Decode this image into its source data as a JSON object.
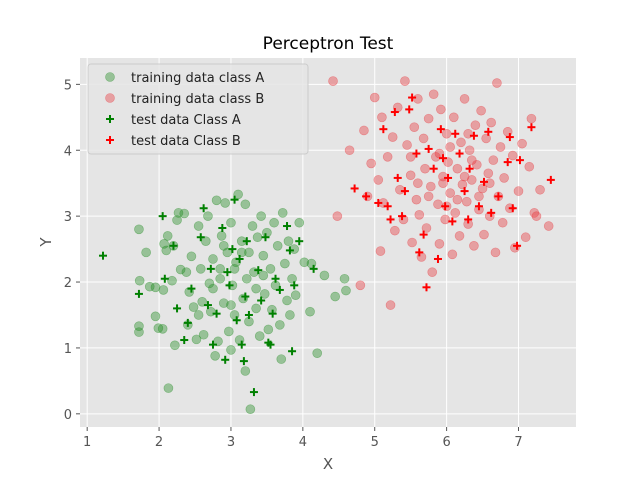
{
  "chart_data": {
    "type": "scatter",
    "title": "Perceptron Test",
    "xlabel": "X",
    "ylabel": "Y",
    "xlim": [
      0.9,
      7.8
    ],
    "ylim": [
      -0.2,
      5.4
    ],
    "xticks": [
      1,
      2,
      3,
      4,
      5,
      6,
      7
    ],
    "yticks": [
      0,
      1,
      2,
      3,
      4,
      5
    ],
    "grid": true,
    "legend_position": "top-left",
    "series": [
      {
        "name": "training data class A",
        "marker": "circle",
        "color": "#228b22",
        "points": [
          [
            1.72,
            2.8
          ],
          [
            1.72,
            1.33
          ],
          [
            1.72,
            1.24
          ],
          [
            1.73,
            2.02
          ],
          [
            1.82,
            2.45
          ],
          [
            1.87,
            1.93
          ],
          [
            1.95,
            1.92
          ],
          [
            1.95,
            1.48
          ],
          [
            1.99,
            1.3
          ],
          [
            2.05,
            1.29
          ],
          [
            2.06,
            1.88
          ],
          [
            2.07,
            2.58
          ],
          [
            2.1,
            2.48
          ],
          [
            2.12,
            2.7
          ],
          [
            2.13,
            0.39
          ],
          [
            2.2,
            2.55
          ],
          [
            2.22,
            1.04
          ],
          [
            2.25,
            2.94
          ],
          [
            2.27,
            3.05
          ],
          [
            2.3,
            2.19
          ],
          [
            2.35,
            3.04
          ],
          [
            2.38,
            2.15
          ],
          [
            2.42,
            1.85
          ],
          [
            2.45,
            2.39
          ],
          [
            2.48,
            1.62
          ],
          [
            2.52,
            1.13
          ],
          [
            2.55,
            2.85
          ],
          [
            2.58,
            2.2
          ],
          [
            2.62,
            1.2
          ],
          [
            2.65,
            2.62
          ],
          [
            2.68,
            3.0
          ],
          [
            2.7,
            1.98
          ],
          [
            2.72,
            1.55
          ],
          [
            2.75,
            2.35
          ],
          [
            2.78,
            0.88
          ],
          [
            2.8,
            3.24
          ],
          [
            2.82,
            1.1
          ],
          [
            2.85,
            2.05
          ],
          [
            2.87,
            2.7
          ],
          [
            2.9,
            1.68
          ],
          [
            2.92,
            3.2
          ],
          [
            2.95,
            2.45
          ],
          [
            2.97,
            1.25
          ],
          [
            3.0,
            0.97
          ],
          [
            3.0,
            2.9
          ],
          [
            3.02,
            1.95
          ],
          [
            3.05,
            1.5
          ],
          [
            3.07,
            2.3
          ],
          [
            3.1,
            3.33
          ],
          [
            3.12,
            1.12
          ],
          [
            3.15,
            2.62
          ],
          [
            3.17,
            1.75
          ],
          [
            3.2,
            0.65
          ],
          [
            3.2,
            3.18
          ],
          [
            3.22,
            2.05
          ],
          [
            3.25,
            1.4
          ],
          [
            3.27,
            0.07
          ],
          [
            3.3,
            2.85
          ],
          [
            3.32,
            2.15
          ],
          [
            3.35,
            1.6
          ],
          [
            3.37,
            2.68
          ],
          [
            3.4,
            1.18
          ],
          [
            3.42,
            3.0
          ],
          [
            3.45,
            2.4
          ],
          [
            3.47,
            1.82
          ],
          [
            3.5,
            2.75
          ],
          [
            3.52,
            1.28
          ],
          [
            3.55,
            2.2
          ],
          [
            3.57,
            1.58
          ],
          [
            3.6,
            2.9
          ],
          [
            3.62,
            1.95
          ],
          [
            3.65,
            2.55
          ],
          [
            3.68,
            1.35
          ],
          [
            3.7,
            0.83
          ],
          [
            3.72,
            3.05
          ],
          [
            3.75,
            2.28
          ],
          [
            3.78,
            1.72
          ],
          [
            3.8,
            2.62
          ],
          [
            3.82,
            1.5
          ],
          [
            3.85,
            2.05
          ],
          [
            3.88,
            2.5
          ],
          [
            3.9,
            1.8
          ],
          [
            3.95,
            2.9
          ],
          [
            4.02,
            2.3
          ],
          [
            4.1,
            1.55
          ],
          [
            4.12,
            2.28
          ],
          [
            4.2,
            0.92
          ],
          [
            4.3,
            2.1
          ],
          [
            4.45,
            1.78
          ],
          [
            4.58,
            2.05
          ],
          [
            4.6,
            1.87
          ],
          [
            2.18,
            2.02
          ],
          [
            2.4,
            1.35
          ],
          [
            2.6,
            1.7
          ],
          [
            2.85,
            2.2
          ],
          [
            3.05,
            2.2
          ],
          [
            3.25,
            2.45
          ],
          [
            3.45,
            2.1
          ],
          [
            3.0,
            1.65
          ],
          [
            2.75,
            1.9
          ],
          [
            2.55,
            1.5
          ],
          [
            3.35,
            1.9
          ],
          [
            3.15,
            2.45
          ],
          [
            2.9,
            2.55
          ]
        ]
      },
      {
        "name": "training data class B",
        "marker": "circle",
        "color": "#e8383d",
        "points": [
          [
            4.42,
            5.05
          ],
          [
            4.48,
            3.0
          ],
          [
            4.65,
            4.0
          ],
          [
            4.8,
            1.95
          ],
          [
            4.85,
            4.3
          ],
          [
            4.9,
            3.3
          ],
          [
            4.95,
            3.8
          ],
          [
            5.0,
            4.8
          ],
          [
            5.05,
            3.55
          ],
          [
            5.08,
            2.47
          ],
          [
            5.1,
            4.5
          ],
          [
            5.12,
            3.2
          ],
          [
            5.18,
            3.9
          ],
          [
            5.22,
            1.65
          ],
          [
            5.25,
            4.2
          ],
          [
            5.28,
            2.78
          ],
          [
            5.32,
            4.65
          ],
          [
            5.35,
            3.4
          ],
          [
            5.4,
            2.95
          ],
          [
            5.42,
            5.05
          ],
          [
            5.45,
            4.08
          ],
          [
            5.5,
            3.62
          ],
          [
            5.52,
            2.6
          ],
          [
            5.55,
            4.35
          ],
          [
            5.58,
            3.25
          ],
          [
            5.6,
            4.78
          ],
          [
            5.62,
            3.02
          ],
          [
            5.65,
            2.38
          ],
          [
            5.68,
            4.18
          ],
          [
            5.7,
            3.72
          ],
          [
            5.72,
            2.82
          ],
          [
            5.75,
            4.48
          ],
          [
            5.78,
            3.45
          ],
          [
            5.8,
            2.15
          ],
          [
            5.82,
            4.85
          ],
          [
            5.85,
            3.9
          ],
          [
            5.88,
            3.18
          ],
          [
            5.9,
            2.58
          ],
          [
            5.92,
            4.62
          ],
          [
            5.95,
            3.6
          ],
          [
            5.98,
            2.95
          ],
          [
            6.0,
            4.25
          ],
          [
            6.02,
            3.82
          ],
          [
            6.05,
            3.35
          ],
          [
            6.08,
            2.42
          ],
          [
            6.1,
            4.5
          ],
          [
            6.12,
            3.05
          ],
          [
            6.15,
            3.72
          ],
          [
            6.18,
            2.7
          ],
          [
            6.2,
            4.12
          ],
          [
            6.22,
            3.48
          ],
          [
            6.25,
            4.78
          ],
          [
            6.28,
            3.22
          ],
          [
            6.3,
            2.88
          ],
          [
            6.32,
            4.0
          ],
          [
            6.35,
            3.55
          ],
          [
            6.38,
            2.55
          ],
          [
            6.4,
            4.38
          ],
          [
            6.42,
            3.78
          ],
          [
            6.45,
            3.1
          ],
          [
            6.48,
            4.6
          ],
          [
            6.5,
            3.42
          ],
          [
            6.52,
            2.72
          ],
          [
            6.55,
            4.18
          ],
          [
            6.58,
            3.65
          ],
          [
            6.6,
            3.0
          ],
          [
            6.62,
            4.42
          ],
          [
            6.65,
            3.85
          ],
          [
            6.68,
            2.45
          ],
          [
            6.7,
            5.02
          ],
          [
            6.72,
            3.3
          ],
          [
            6.75,
            4.05
          ],
          [
            6.78,
            2.9
          ],
          [
            6.8,
            3.58
          ],
          [
            6.85,
            4.28
          ],
          [
            6.88,
            3.12
          ],
          [
            6.92,
            3.92
          ],
          [
            6.95,
            2.52
          ],
          [
            7.0,
            3.38
          ],
          [
            7.05,
            4.1
          ],
          [
            7.1,
            2.68
          ],
          [
            7.15,
            3.75
          ],
          [
            7.18,
            4.48
          ],
          [
            7.22,
            3.05
          ],
          [
            7.3,
            3.4
          ],
          [
            7.42,
            2.85
          ],
          [
            7.25,
            3.0
          ],
          [
            5.6,
            3.5
          ],
          [
            5.9,
            3.95
          ],
          [
            6.15,
            3.25
          ],
          [
            6.35,
            3.85
          ],
          [
            5.75,
            3.3
          ],
          [
            6.05,
            4.05
          ],
          [
            6.25,
            3.6
          ],
          [
            6.45,
            3.3
          ],
          [
            5.95,
            3.5
          ],
          [
            6.6,
            3.5
          ],
          [
            5.5,
            3.9
          ],
          [
            6.0,
            3.15
          ],
          [
            6.3,
            4.25
          ]
        ]
      },
      {
        "name": "test data Class A",
        "marker": "plus",
        "color": "#008000",
        "points": [
          [
            1.22,
            2.4
          ],
          [
            1.72,
            1.82
          ],
          [
            2.05,
            3.0
          ],
          [
            2.08,
            2.05
          ],
          [
            2.2,
            2.55
          ],
          [
            2.25,
            1.6
          ],
          [
            2.35,
            1.12
          ],
          [
            2.4,
            1.38
          ],
          [
            2.45,
            1.9
          ],
          [
            2.58,
            2.68
          ],
          [
            2.62,
            3.12
          ],
          [
            2.68,
            1.65
          ],
          [
            2.72,
            2.2
          ],
          [
            2.75,
            1.05
          ],
          [
            2.8,
            1.52
          ],
          [
            2.88,
            2.82
          ],
          [
            2.92,
            0.82
          ],
          [
            2.98,
            1.95
          ],
          [
            3.05,
            3.25
          ],
          [
            3.08,
            1.42
          ],
          [
            3.12,
            2.35
          ],
          [
            3.15,
            1.05
          ],
          [
            3.18,
            0.8
          ],
          [
            3.2,
            1.78
          ],
          [
            3.22,
            2.62
          ],
          [
            3.25,
            1.5
          ],
          [
            3.32,
            0.33
          ],
          [
            3.38,
            2.18
          ],
          [
            3.42,
            1.72
          ],
          [
            3.48,
            2.68
          ],
          [
            3.52,
            1.08
          ],
          [
            3.55,
            1.05
          ],
          [
            3.58,
            1.52
          ],
          [
            3.62,
            2.05
          ],
          [
            3.68,
            1.88
          ],
          [
            3.78,
            2.85
          ],
          [
            3.82,
            2.48
          ],
          [
            3.85,
            0.95
          ],
          [
            3.88,
            1.95
          ],
          [
            3.95,
            2.62
          ],
          [
            4.15,
            2.2
          ],
          [
            2.95,
            2.15
          ],
          [
            3.02,
            2.5
          ]
        ]
      },
      {
        "name": "test data Class B",
        "marker": "plus",
        "color": "#ff0000",
        "points": [
          [
            4.72,
            3.42
          ],
          [
            4.88,
            3.3
          ],
          [
            5.05,
            3.2
          ],
          [
            5.12,
            4.32
          ],
          [
            5.18,
            3.15
          ],
          [
            5.22,
            2.95
          ],
          [
            5.28,
            4.58
          ],
          [
            5.32,
            3.58
          ],
          [
            5.38,
            3.0
          ],
          [
            5.42,
            3.38
          ],
          [
            5.48,
            4.62
          ],
          [
            5.52,
            4.8
          ],
          [
            5.58,
            3.95
          ],
          [
            5.62,
            2.45
          ],
          [
            5.68,
            2.72
          ],
          [
            5.72,
            1.92
          ],
          [
            5.75,
            4.02
          ],
          [
            5.82,
            3.72
          ],
          [
            5.88,
            2.35
          ],
          [
            5.92,
            4.32
          ],
          [
            5.98,
            3.15
          ],
          [
            6.02,
            3.58
          ],
          [
            6.08,
            2.92
          ],
          [
            6.12,
            4.25
          ],
          [
            6.18,
            3.95
          ],
          [
            6.25,
            3.38
          ],
          [
            6.32,
            3.72
          ],
          [
            6.38,
            4.22
          ],
          [
            6.45,
            3.15
          ],
          [
            6.52,
            3.52
          ],
          [
            6.58,
            4.28
          ],
          [
            6.62,
            3.05
          ],
          [
            6.72,
            3.3
          ],
          [
            6.85,
            3.82
          ],
          [
            6.88,
            4.2
          ],
          [
            6.92,
            3.12
          ],
          [
            6.98,
            2.55
          ],
          [
            7.02,
            3.85
          ],
          [
            7.18,
            4.35
          ],
          [
            7.45,
            3.55
          ],
          [
            6.3,
            2.95
          ],
          [
            5.95,
            3.88
          ]
        ]
      }
    ]
  }
}
